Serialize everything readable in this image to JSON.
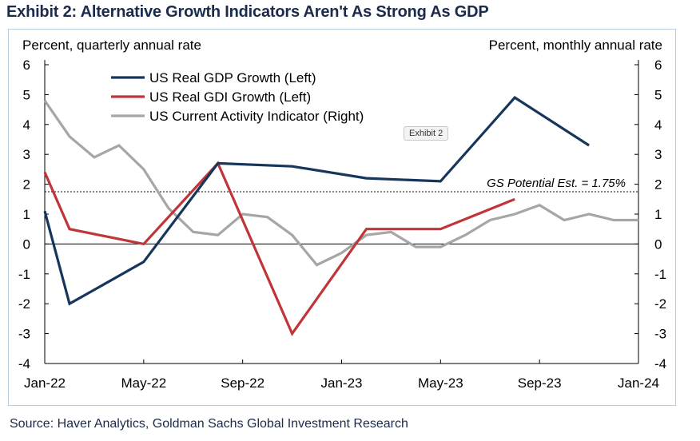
{
  "title": "Exhibit 2: Alternative Growth Indicators Aren't As Strong As GDP",
  "source": "Source: Haver Analytics, Goldman Sachs Global Investment Research",
  "tooltip": "Exhibit 2",
  "chart_data": {
    "type": "line",
    "left_axis_label": "Percent, quarterly annual rate",
    "right_axis_label": "Percent, monthly annual rate",
    "ylim": [
      -4,
      6
    ],
    "yticks": [
      "6",
      "5",
      "4",
      "3",
      "2",
      "1",
      "0",
      "-1",
      "-2",
      "-3",
      "-4"
    ],
    "xlim": [
      "2022-01",
      "2024-01"
    ],
    "xtick_labels": [
      "Jan-22",
      "May-22",
      "Sep-22",
      "Jan-23",
      "May-23",
      "Sep-23",
      "Jan-24"
    ],
    "reference_line": {
      "value": 1.75,
      "label": "GS Potential Est. = 1.75%"
    },
    "zero_line": true,
    "grid": false,
    "legend_position": "top-left",
    "series": [
      {
        "name": "US Real GDP Growth (Left)",
        "color": "#16365c",
        "axis": "left",
        "points": [
          [
            "2022-01",
            1.1
          ],
          [
            "2022-02",
            -2.0
          ],
          [
            "2022-05",
            -0.6
          ],
          [
            "2022-08",
            2.7
          ],
          [
            "2022-11",
            2.6
          ],
          [
            "2023-02",
            2.2
          ],
          [
            "2023-05",
            2.1
          ],
          [
            "2023-08",
            4.9
          ],
          [
            "2023-11",
            3.3
          ]
        ]
      },
      {
        "name": "US Real GDI Growth (Left)",
        "color": "#c0353a",
        "axis": "left",
        "points": [
          [
            "2022-01",
            2.4
          ],
          [
            "2022-02",
            0.5
          ],
          [
            "2022-05",
            0.0
          ],
          [
            "2022-08",
            2.7
          ],
          [
            "2022-11",
            -3.0
          ],
          [
            "2023-02",
            0.5
          ],
          [
            "2023-05",
            0.5
          ],
          [
            "2023-08",
            1.5
          ]
        ]
      },
      {
        "name": "US Current Activity Indicator (Right)",
        "color": "#a6a6a6",
        "axis": "right",
        "points": [
          [
            "2022-01",
            4.8
          ],
          [
            "2022-02",
            3.6
          ],
          [
            "2022-03",
            2.9
          ],
          [
            "2022-04",
            3.3
          ],
          [
            "2022-05",
            2.5
          ],
          [
            "2022-06",
            1.2
          ],
          [
            "2022-07",
            0.4
          ],
          [
            "2022-08",
            0.3
          ],
          [
            "2022-09",
            1.0
          ],
          [
            "2022-10",
            0.9
          ],
          [
            "2022-11",
            0.3
          ],
          [
            "2022-12",
            -0.7
          ],
          [
            "2023-01",
            -0.3
          ],
          [
            "2023-02",
            0.3
          ],
          [
            "2023-03",
            0.4
          ],
          [
            "2023-04",
            -0.1
          ],
          [
            "2023-05",
            -0.1
          ],
          [
            "2023-06",
            0.3
          ],
          [
            "2023-07",
            0.8
          ],
          [
            "2023-08",
            1.0
          ],
          [
            "2023-09",
            1.3
          ],
          [
            "2023-10",
            0.8
          ],
          [
            "2023-11",
            1.0
          ],
          [
            "2023-12",
            0.8
          ],
          [
            "2024-01",
            0.8
          ]
        ]
      }
    ]
  }
}
